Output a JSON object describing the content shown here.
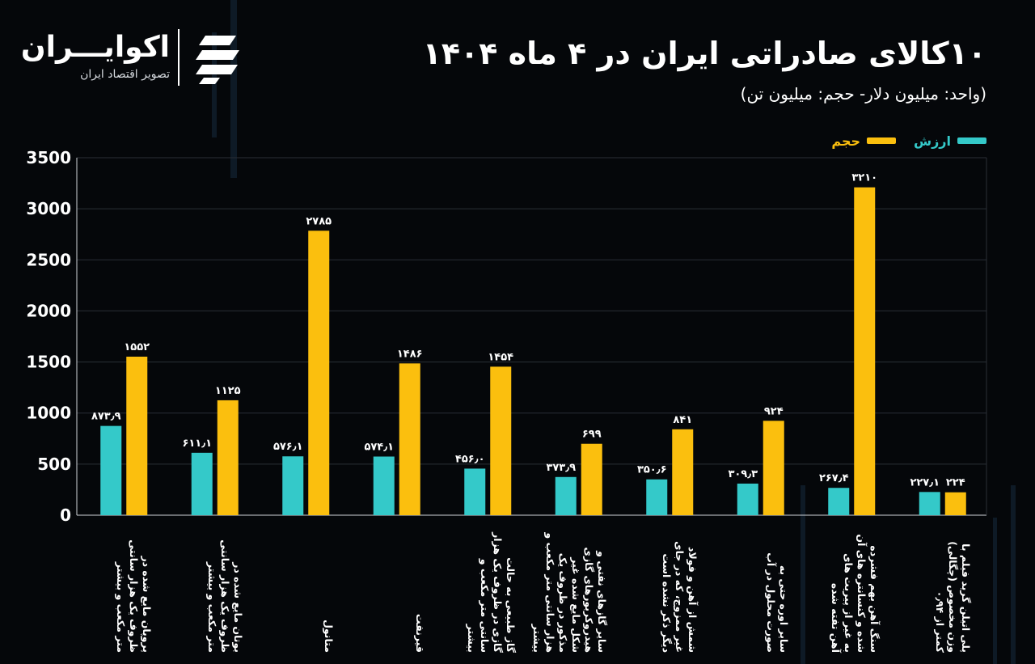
{
  "logo": {
    "name": "اکوایـــران",
    "tagline": "تصویر اقتصاد ایران"
  },
  "title": "۱۰کالای صادراتی ایران در ۴ ماه ۱۴۰۴",
  "subtitle": "(واحد: میلیون دلار- حجم: میلیون تن)",
  "colors": {
    "value": "#34c9c9",
    "volume": "#fbbf0e",
    "background": "#05070a",
    "grid": "#2a2f36"
  },
  "chart_data": {
    "type": "bar",
    "title": "۱۰کالای صادراتی ایران در ۴ ماه ۱۴۰۴",
    "ylim": [
      0,
      3500
    ],
    "yticks": [
      0,
      500,
      1000,
      1500,
      2000,
      2500,
      3000,
      3500
    ],
    "ytick_labels": [
      "0",
      "500",
      "1000",
      "1500",
      "2000",
      "2500",
      "3000",
      "3500"
    ],
    "legend_position": "top-right",
    "categories": [
      "پروپان مایع شده در ظروف یک هزار سانتی متر مکعب و بیشتر",
      "بوتان مایع شده در ظروف یک هزار سانتی متر مکعب و بیشتر",
      "متانول",
      "قیرنفت",
      "گاز طبیعی به حالت گازی در ظروف یک هزار سانتی متر مکعب و بیشتر",
      "سایر گازهای نفتی و هیدروکربورهای گازی شکل مایع شده غیر مذکور در ظروف یک هزار سانتی متر مکعب و بیشتر",
      "شمش از آهن و فولاد غیر ممزوج، که در جای دیگر ذکر نشده است",
      "سایر اوره حتی به صورت محلول در آب",
      "سنگ آهن بهم فشرده شده و کنسانتره های آن به غیر از پیریت های آهن تفته شده",
      "پلی اتیلن گرید فیلم با وزن مخصوص (چگالی) کمتر از ۰٫۹۴"
    ],
    "series": [
      {
        "name": "ارزش",
        "values": [
          873.9,
          611.1,
          576.1,
          574.1,
          456.0,
          373.9,
          350.6,
          309.3,
          267.4,
          227.1
        ],
        "labels": [
          "۸۷۳٫۹",
          "۶۱۱٫۱",
          "۵۷۶٫۱",
          "۵۷۴٫۱",
          "۴۵۶٫۰",
          "۳۷۳٫۹",
          "۳۵۰٫۶",
          "۳۰۹٫۳",
          "۲۶۷٫۴",
          "۲۲۷٫۱"
        ]
      },
      {
        "name": "حجم",
        "values": [
          1552,
          1125,
          2785,
          1486,
          1454,
          699,
          841,
          924,
          3210,
          224
        ],
        "labels": [
          "۱۵۵۲",
          "۱۱۲۵",
          "۲۷۸۵",
          "۱۴۸۶",
          "۱۴۵۴",
          "۶۹۹",
          "۸۴۱",
          "۹۲۴",
          "۳۲۱۰",
          "۲۲۴"
        ]
      }
    ]
  }
}
